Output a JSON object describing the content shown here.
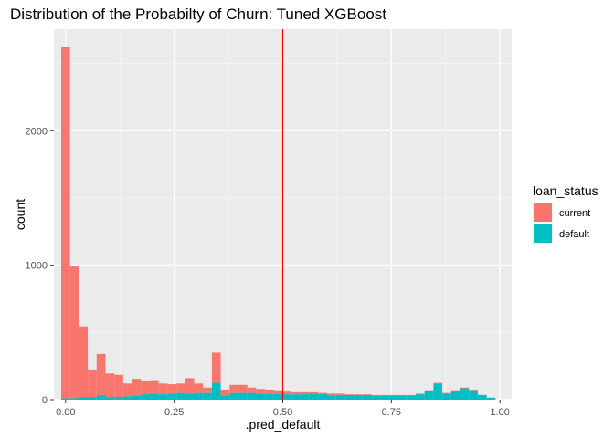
{
  "chart_data": {
    "type": "bar",
    "subtype": "stacked-histogram",
    "title": "Distribution of the Probabilty of Churn: Tuned XGBoost",
    "xlabel": ".pred_default",
    "ylabel": "count",
    "xlim": [
      -0.027,
      1.027
    ],
    "ylim": [
      0,
      2755
    ],
    "x_ticks": [
      0.0,
      0.25,
      0.5,
      0.75,
      1.0
    ],
    "x_tick_labels": [
      "0.00",
      "0.25",
      "0.50",
      "0.75",
      "1.00"
    ],
    "y_ticks": [
      0,
      1000,
      2000
    ],
    "y_tick_labels": [
      "0",
      "1000",
      "2000"
    ],
    "bin_width": 0.0204,
    "bin_centers": [
      0.0,
      0.0204,
      0.0408,
      0.0612,
      0.0816,
      0.102,
      0.1224,
      0.1429,
      0.1633,
      0.1837,
      0.2041,
      0.2245,
      0.2449,
      0.2653,
      0.2857,
      0.3061,
      0.3265,
      0.3469,
      0.3673,
      0.3878,
      0.4082,
      0.4286,
      0.449,
      0.4694,
      0.4898,
      0.5102,
      0.5306,
      0.551,
      0.5714,
      0.5918,
      0.6122,
      0.6327,
      0.6531,
      0.6735,
      0.6939,
      0.7143,
      0.7347,
      0.7551,
      0.7755,
      0.7959,
      0.8163,
      0.8367,
      0.8571,
      0.8776,
      0.898,
      0.9184,
      0.9388,
      0.9592,
      0.9796
    ],
    "series": [
      {
        "name": "current",
        "color": "#F8766D",
        "values": [
          2610,
          985,
          525,
          205,
          305,
          175,
          165,
          95,
          125,
          100,
          100,
          80,
          70,
          70,
          115,
          70,
          40,
          225,
          45,
          60,
          60,
          40,
          35,
          30,
          25,
          20,
          15,
          15,
          10,
          10,
          10,
          10,
          5,
          5,
          5,
          5,
          5,
          5,
          5,
          5,
          5,
          5,
          5,
          5,
          5,
          5,
          5,
          0,
          0
        ]
      },
      {
        "name": "default",
        "color": "#00BFC4",
        "values": [
          10,
          12,
          20,
          20,
          35,
          20,
          20,
          25,
          30,
          40,
          45,
          40,
          45,
          50,
          45,
          50,
          50,
          125,
          30,
          50,
          50,
          50,
          45,
          45,
          45,
          40,
          40,
          40,
          45,
          40,
          35,
          35,
          35,
          35,
          35,
          30,
          30,
          30,
          30,
          30,
          40,
          65,
          120,
          45,
          65,
          85,
          70,
          35,
          15
        ]
      }
    ],
    "reference_line": {
      "x": 0.5,
      "color": "#FF0000"
    },
    "legend": {
      "title": "loan_status",
      "position": "right",
      "entries": [
        "current",
        "default"
      ]
    },
    "grid": true
  }
}
